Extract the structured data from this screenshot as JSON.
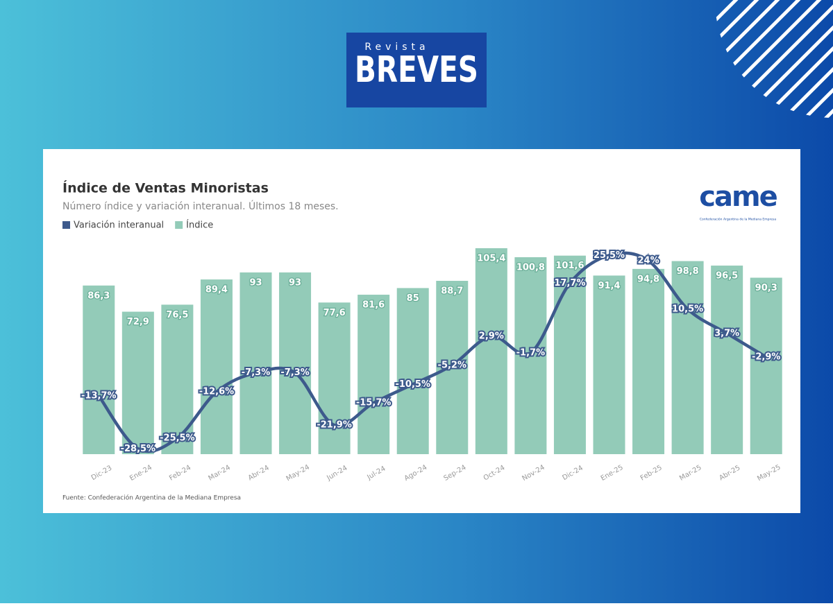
{
  "header": {
    "kicker": "Revista",
    "brand": "BREVES"
  },
  "logo": {
    "name": "came",
    "caption": "Confederación Argentina de la Mediana Empresa"
  },
  "chart_data": {
    "type": "bar-line",
    "title": "Índice de Ventas Minoristas",
    "subtitle": "Número índice y variación interanual. Últimos 18 meses.",
    "source": "Fuente: Confederación Argentina de la Mediana Empresa",
    "categories": [
      "Dic-23",
      "Ene-24",
      "Feb-24",
      "Mar-24",
      "Abr-24",
      "May-24",
      "Jun-24",
      "Jul-24",
      "Ago-24",
      "Sep-24",
      "Oct-24",
      "Nov-24",
      "Dic-24",
      "Ene-25",
      "Feb-25",
      "Mar-25",
      "Abr-25",
      "May-25"
    ],
    "ylim": [
      0,
      110
    ],
    "y2lim": [
      -30,
      30
    ],
    "series": [
      {
        "name": "Variación interanual",
        "color": "#3d5a8c",
        "axis": "y2",
        "values": [
          -13.7,
          -28.5,
          -25.5,
          -12.6,
          -7.3,
          -7.3,
          -21.9,
          -15.7,
          -10.5,
          -5.2,
          2.9,
          -1.7,
          17.7,
          25.5,
          24,
          10.5,
          3.7,
          -2.9
        ],
        "value_labels": [
          "-13,7%",
          "-28,5%",
          "-25,5%",
          "-12,6%",
          "-7,3%",
          "-7,3%",
          "-21,9%",
          "-15,7%",
          "-10,5%",
          "-5,2%",
          "2,9%",
          "-1,7%",
          "17,7%",
          "25,5%",
          "24%",
          "10,5%",
          "3,7%",
          "-2,9%"
        ]
      },
      {
        "name": "Índice",
        "color": "#93cbb8",
        "values": [
          86.3,
          72.9,
          76.5,
          89.4,
          93,
          93,
          77.6,
          81.6,
          85,
          88.7,
          105.4,
          100.8,
          101.6,
          91.4,
          94.8,
          98.8,
          96.5,
          90.3
        ],
        "value_labels": [
          "86,3",
          "72,9",
          "76,5",
          "89,4",
          "93",
          "93",
          "77,6",
          "81,6",
          "85",
          "88,7",
          "105,4",
          "100,8",
          "101,6",
          "91,4",
          "94,8",
          "98,8",
          "96,5",
          "90,3"
        ]
      }
    ]
  }
}
